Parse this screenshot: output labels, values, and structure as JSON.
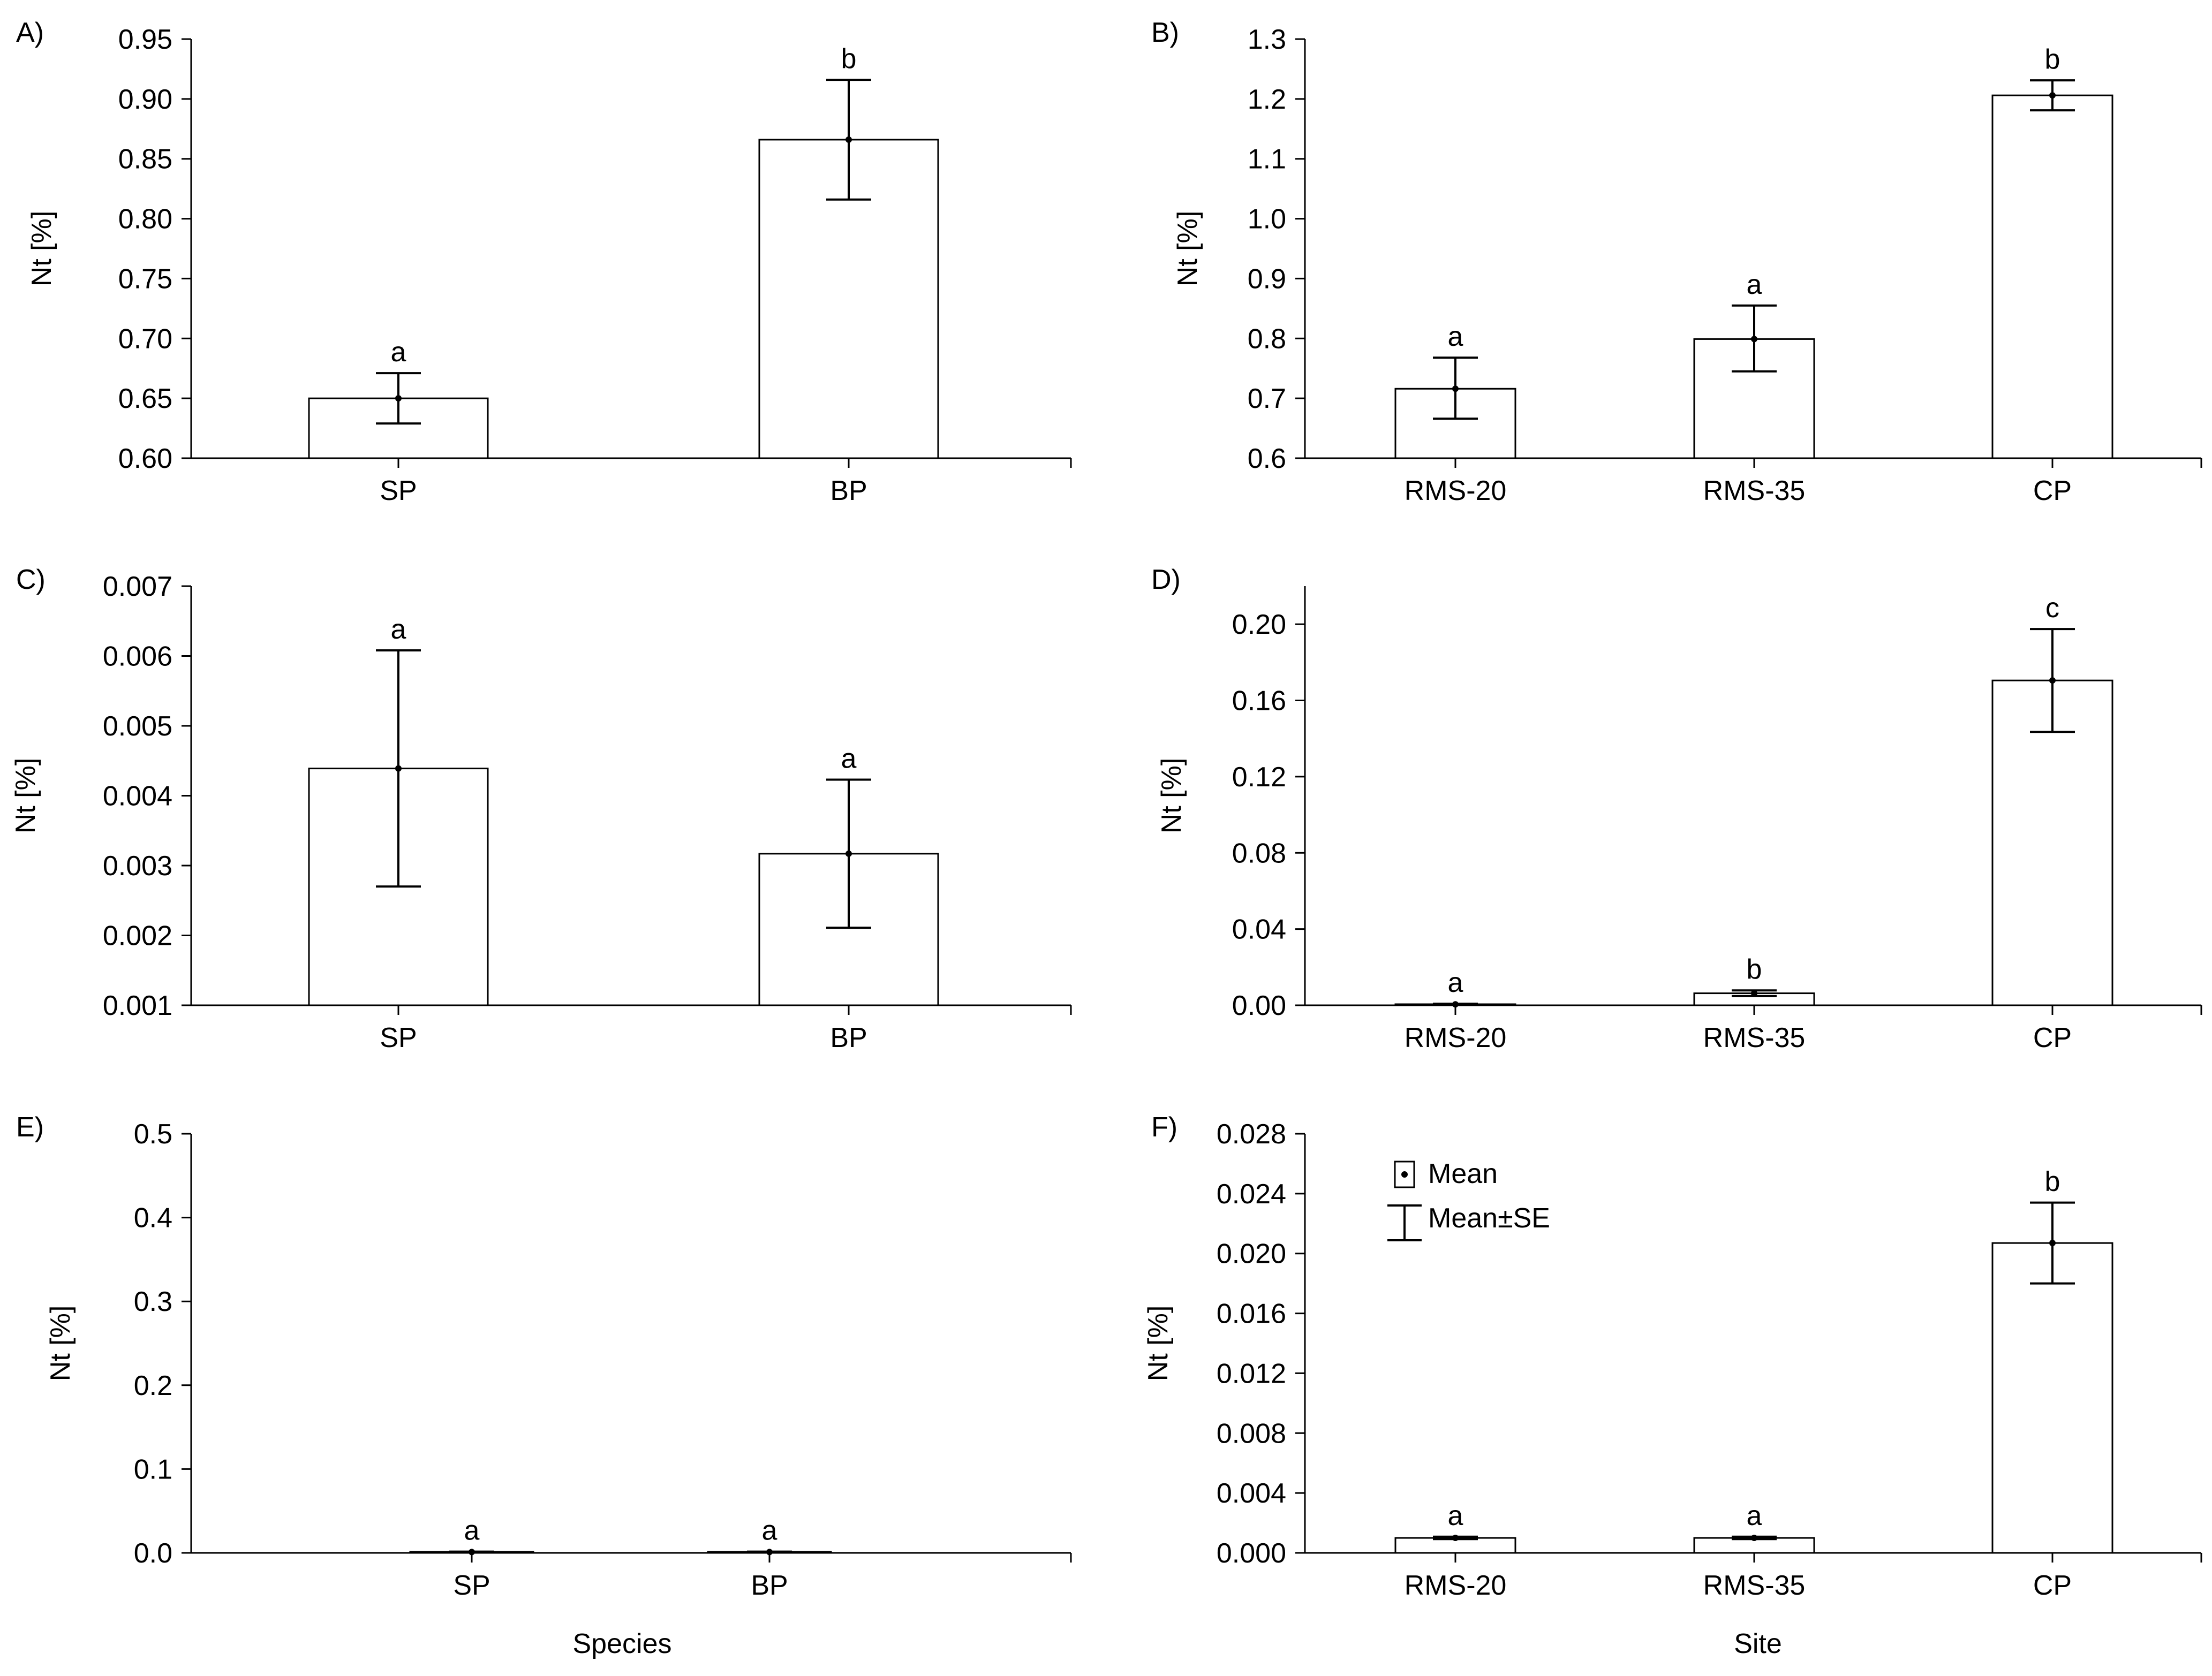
{
  "figure": {
    "x_titles": {
      "left": "Species",
      "right": "Site"
    },
    "legend": {
      "mean": "Mean",
      "mean_se": "Mean±SE"
    }
  },
  "chart_data": [
    {
      "panel": "A)",
      "type": "bar",
      "ylabel": "Nt [%]",
      "xlabel": "",
      "ylim": [
        0.6,
        0.95
      ],
      "yticks": [
        0.6,
        0.65,
        0.7,
        0.75,
        0.8,
        0.85,
        0.9,
        0.95
      ],
      "ytick_labels": [
        "0.60",
        "0.65",
        "0.70",
        "0.75",
        "0.80",
        "0.85",
        "0.90",
        "0.95"
      ],
      "categories": [
        "SP",
        "BP"
      ],
      "values": [
        0.65,
        0.866
      ],
      "se_lower": [
        0.629,
        0.816
      ],
      "se_upper": [
        0.671,
        0.916
      ],
      "significance": [
        "a",
        "b"
      ]
    },
    {
      "panel": "B)",
      "type": "bar",
      "ylabel": "Nt [%]",
      "xlabel": "",
      "ylim": [
        0.6,
        1.3
      ],
      "yticks": [
        0.6,
        0.7,
        0.8,
        0.9,
        1.0,
        1.1,
        1.2,
        1.3
      ],
      "ytick_labels": [
        "0.6",
        "0.7",
        "0.8",
        "0.9",
        "1.0",
        "1.1",
        "1.2",
        "1.3"
      ],
      "categories": [
        "RMS-20",
        "RMS-35",
        "CP"
      ],
      "values": [
        0.716,
        0.799,
        1.206
      ],
      "se_lower": [
        0.666,
        0.745,
        1.181
      ],
      "se_upper": [
        0.768,
        0.855,
        1.231
      ],
      "significance": [
        "a",
        "a",
        "b"
      ]
    },
    {
      "panel": "C)",
      "type": "bar",
      "ylabel": "Nt [%]",
      "xlabel": "",
      "ylim": [
        0.001,
        0.007
      ],
      "yticks": [
        0.001,
        0.002,
        0.003,
        0.004,
        0.005,
        0.006,
        0.007
      ],
      "ytick_labels": [
        "0.001",
        "0.002",
        "0.003",
        "0.004",
        "0.005",
        "0.006",
        "0.007"
      ],
      "categories": [
        "SP",
        "BP"
      ],
      "values": [
        0.00439,
        0.00317
      ],
      "se_lower": [
        0.0027,
        0.00211
      ],
      "se_upper": [
        0.00608,
        0.00423
      ],
      "significance": [
        "a",
        "a"
      ]
    },
    {
      "panel": "D)",
      "type": "bar",
      "ylabel": "Nt [%]",
      "xlabel": "",
      "ylim": [
        0.0,
        0.22
      ],
      "yticks": [
        0.0,
        0.04,
        0.08,
        0.12,
        0.16,
        0.2
      ],
      "ytick_labels": [
        "0.00",
        "0.04",
        "0.08",
        "0.12",
        "0.16",
        "0.20"
      ],
      "categories": [
        "RMS-20",
        "RMS-35",
        "CP"
      ],
      "values": [
        0.0005,
        0.0063,
        0.1705
      ],
      "se_lower": [
        0.0002,
        0.0048,
        0.1435
      ],
      "se_upper": [
        0.0008,
        0.0078,
        0.1975
      ],
      "significance": [
        "a",
        "b",
        "c"
      ]
    },
    {
      "panel": "E)",
      "type": "bar",
      "ylabel": "Nt [%]",
      "xlabel": "Species",
      "ylim": [
        0.0,
        0.5
      ],
      "yticks": [
        0.0,
        0.1,
        0.2,
        0.3,
        0.4,
        0.5
      ],
      "ytick_labels": [
        "0.0",
        "0.1",
        "0.2",
        "0.3",
        "0.4",
        "0.5"
      ],
      "categories": [
        "SP",
        "BP"
      ],
      "values": [
        0.001,
        0.001
      ],
      "se_lower": [
        0.0005,
        0.0005
      ],
      "se_upper": [
        0.0015,
        0.0015
      ],
      "significance": [
        "a",
        "a"
      ]
    },
    {
      "panel": "F)",
      "type": "bar",
      "ylabel": "Nt [%]",
      "xlabel": "Site",
      "ylim": [
        0.0,
        0.028
      ],
      "yticks": [
        0.0,
        0.004,
        0.008,
        0.012,
        0.016,
        0.02,
        0.024,
        0.028
      ],
      "ytick_labels": [
        "0.000",
        "0.004",
        "0.008",
        "0.012",
        "0.016",
        "0.020",
        "0.024",
        "0.028"
      ],
      "categories": [
        "RMS-20",
        "RMS-35",
        "CP"
      ],
      "values": [
        0.001,
        0.001,
        0.0207
      ],
      "se_lower": [
        0.00092,
        0.00092,
        0.018
      ],
      "se_upper": [
        0.00108,
        0.00108,
        0.0234
      ],
      "significance": [
        "a",
        "a",
        "b"
      ]
    }
  ]
}
